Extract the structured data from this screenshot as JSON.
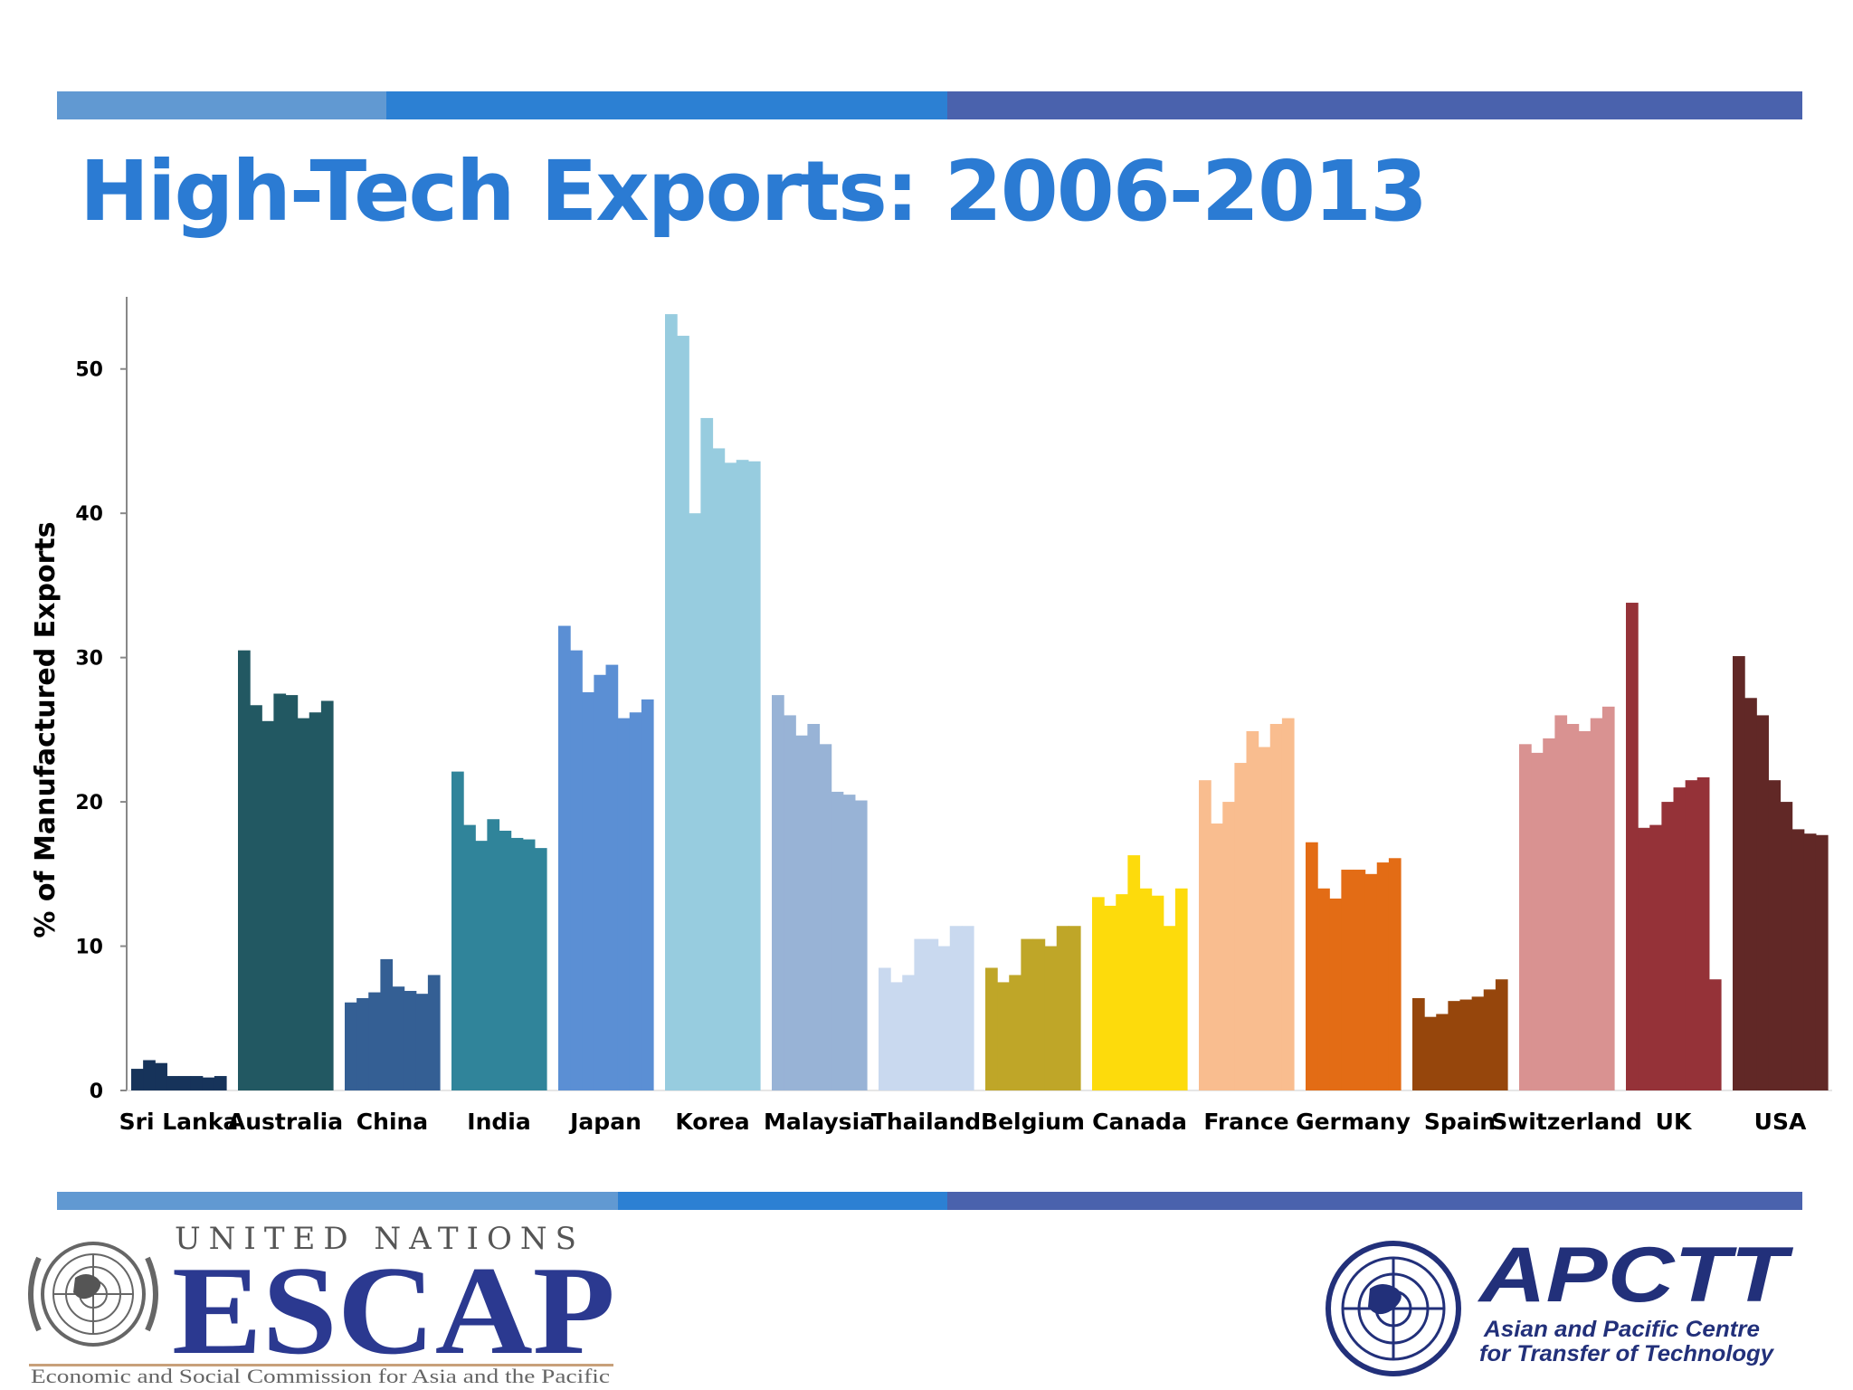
{
  "slide": {
    "band_colors": [
      "#6199d2",
      "#2c80d3",
      "#4a62ad"
    ],
    "title": "High-Tech Exports: 2006-2013"
  },
  "chart_data": {
    "type": "bar",
    "ylabel": "% of Manufactured Exports",
    "xlabel": "",
    "ylim": [
      0,
      55
    ],
    "yticks": [
      0,
      10,
      20,
      30,
      40,
      50
    ],
    "grid": false,
    "series_note_years": "2006-2013",
    "categories": [
      {
        "name": "Sri Lanka",
        "color": "#16335a",
        "values": [
          1.5,
          2.1,
          1.9,
          1.0,
          1.0,
          1.0,
          0.9,
          1.0
        ]
      },
      {
        "name": "Australia",
        "color": "#225862",
        "values": [
          30.5,
          26.7,
          25.6,
          27.5,
          27.4,
          25.8,
          26.2,
          27.0
        ]
      },
      {
        "name": "China",
        "color": "#345f94",
        "values": [
          6.1,
          6.4,
          6.8,
          9.1,
          7.2,
          6.9,
          6.7,
          8.0
        ]
      },
      {
        "name": "India",
        "color": "#30849a",
        "values": [
          22.1,
          18.4,
          17.3,
          18.8,
          18.0,
          17.5,
          17.4,
          16.8
        ]
      },
      {
        "name": "Japan",
        "color": "#5b8fd4",
        "values": [
          32.2,
          30.5,
          27.6,
          28.8,
          29.5,
          25.8,
          26.2,
          27.1
        ]
      },
      {
        "name": "Korea",
        "color": "#97ccdf",
        "values": [
          53.8,
          52.3,
          40.0,
          46.6,
          44.5,
          43.5,
          43.7,
          43.6
        ]
      },
      {
        "name": "Malaysia",
        "color": "#98b3d6",
        "values": [
          27.4,
          26.0,
          24.6,
          25.4,
          24.0,
          20.7,
          20.5,
          20.1
        ]
      },
      {
        "name": "Thailand",
        "color": "#c9d9ef",
        "values": [
          8.5,
          7.5,
          8.0,
          10.5,
          10.5,
          10.0,
          11.4,
          11.4
        ]
      },
      {
        "name": "Belgium",
        "color": "#bfa628",
        "values": [
          8.5,
          7.5,
          8.0,
          10.5,
          10.5,
          10.0,
          11.4,
          11.4
        ]
      },
      {
        "name": "Canada",
        "color": "#fddb0c",
        "values": [
          13.4,
          12.8,
          13.6,
          16.3,
          14.0,
          13.5,
          11.4,
          14.0
        ]
      },
      {
        "name": "France",
        "color": "#f9bd8f",
        "values": [
          21.5,
          18.5,
          20.0,
          22.7,
          24.9,
          23.8,
          25.4,
          25.8
        ]
      },
      {
        "name": "Germany",
        "color": "#e36c15",
        "values": [
          17.2,
          14.0,
          13.3,
          15.3,
          15.3,
          15.0,
          15.8,
          16.1
        ]
      },
      {
        "name": "Spain",
        "color": "#96460c",
        "values": [
          6.4,
          5.1,
          5.3,
          6.2,
          6.3,
          6.5,
          7.0,
          7.7
        ]
      },
      {
        "name": "Switzerland",
        "color": "#d99291",
        "values": [
          24.0,
          23.4,
          24.4,
          26.0,
          25.4,
          24.9,
          25.8,
          26.6
        ]
      },
      {
        "name": "UK",
        "color": "#953238",
        "values": [
          33.8,
          18.2,
          18.4,
          20.0,
          21.0,
          21.5,
          21.7,
          7.7
        ]
      },
      {
        "name": "USA",
        "color": "#612826",
        "values": [
          30.1,
          27.2,
          26.0,
          21.5,
          20.0,
          18.1,
          17.8,
          17.7
        ]
      }
    ]
  },
  "logos": {
    "escap": {
      "top_text": "UNITED NATIONS",
      "main_text": "ESCAP",
      "sub_text": "Economic and Social Commission for Asia and the Pacific",
      "color": "#2b3990"
    },
    "apctt": {
      "main_text": "APCTT",
      "line1": "Asian and Pacific Centre",
      "line2": "for Transfer of Technology",
      "color": "#22307a"
    }
  }
}
